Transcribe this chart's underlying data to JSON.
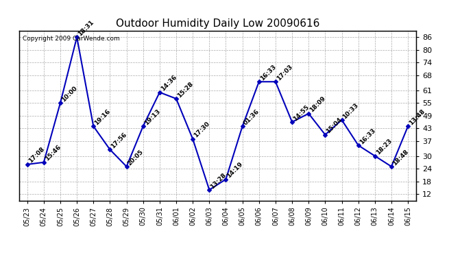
{
  "title": "Outdoor Humidity Daily Low 20090616",
  "copyright": "Copyright 2009 CarWende.com",
  "x_labels": [
    "05/23",
    "05/24",
    "05/25",
    "05/26",
    "05/27",
    "05/28",
    "05/29",
    "05/30",
    "05/31",
    "06/01",
    "06/02",
    "06/03",
    "06/04",
    "06/05",
    "06/06",
    "06/07",
    "06/08",
    "06/09",
    "06/10",
    "06/11",
    "06/12",
    "06/13",
    "06/14",
    "06/15"
  ],
  "y_values": [
    26,
    27,
    55,
    86,
    44,
    33,
    25,
    44,
    60,
    57,
    38,
    14,
    19,
    44,
    65,
    65,
    46,
    50,
    40,
    47,
    35,
    30,
    25,
    44
  ],
  "point_labels": [
    "17:08",
    "15:46",
    "10:00",
    "18:31",
    "19:16",
    "17:56",
    "20:05",
    "19:13",
    "14:36",
    "15:28",
    "17:30",
    "13:28",
    "14:19",
    "01:36",
    "16:33",
    "17:03",
    "14:55",
    "18:09",
    "15:04",
    "10:33",
    "16:33",
    "18:23",
    "18:48",
    "13:48"
  ],
  "line_color": "#0000bb",
  "marker_color": "#0000bb",
  "bg_color": "#ffffff",
  "grid_color": "#aaaaaa",
  "ylim": [
    9,
    89
  ],
  "yticks": [
    12,
    18,
    24,
    30,
    37,
    43,
    49,
    55,
    61,
    68,
    74,
    80,
    86
  ],
  "label_fontsize": 6.5,
  "title_fontsize": 11,
  "copyright_fontsize": 6.5
}
